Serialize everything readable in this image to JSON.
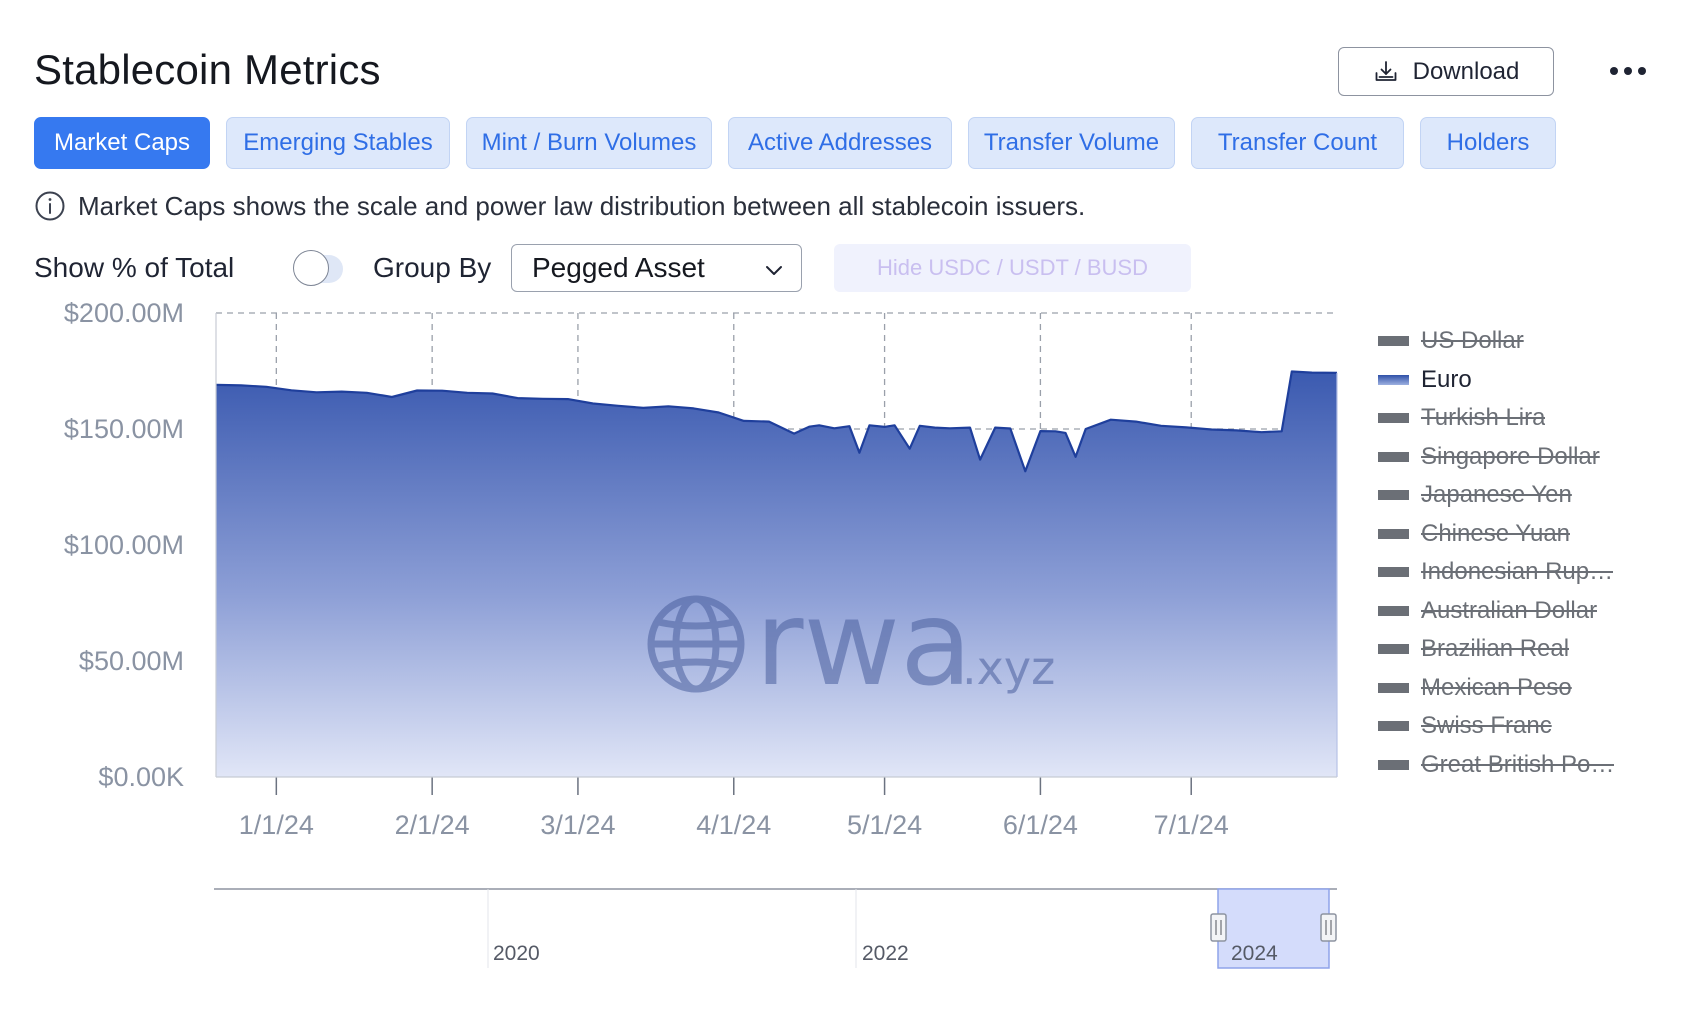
{
  "header": {
    "title": "Stablecoin Metrics",
    "download_label": "Download"
  },
  "icons": {
    "download": "download-icon",
    "more": "more-dots-icon",
    "info": "info-icon",
    "chevron": "chevron-down-icon",
    "watermark": "globe-icon"
  },
  "tabs": [
    {
      "label": "Market Caps",
      "active": true
    },
    {
      "label": "Emerging Stables",
      "active": false
    },
    {
      "label": "Mint / Burn Volumes",
      "active": false
    },
    {
      "label": "Active Addresses",
      "active": false
    },
    {
      "label": "Transfer Volume",
      "active": false
    },
    {
      "label": "Transfer Count",
      "active": false
    },
    {
      "label": "Holders",
      "active": false
    }
  ],
  "info_text": "Market Caps shows the scale and power law distribution between all stablecoin issuers.",
  "controls": {
    "show_pct_label": "Show % of Total",
    "show_pct_on": false,
    "group_by_label": "Group By",
    "group_by_value": "Pegged Asset",
    "hide_button_label": "Hide USDC / USDT / BUSD"
  },
  "colors": {
    "accent": "#3679f0",
    "series_top": "#2f50a8",
    "series_bottom": "#dfe4f6",
    "legend_off": "#6b6f76"
  },
  "watermark": {
    "main": "rwa",
    "suffix": ".xyz"
  },
  "navigator": {
    "labels": [
      "2020",
      "2022",
      "2024"
    ]
  },
  "chart_data": {
    "type": "area",
    "title": "",
    "xlabel": "",
    "ylabel": "",
    "ylim": [
      0,
      200000000
    ],
    "y_ticks": [
      "$0.00K",
      "$50.00M",
      "$100.00M",
      "$150.00M",
      "$200.00M"
    ],
    "y_tick_values": [
      0,
      50000000,
      100000000,
      150000000,
      200000000
    ],
    "x_ticks": [
      "1/1/24",
      "2/1/24",
      "3/1/24",
      "4/1/24",
      "5/1/24",
      "6/1/24",
      "7/1/24"
    ],
    "x_tick_dates": [
      "2024-01-01",
      "2024-02-01",
      "2024-03-01",
      "2024-04-01",
      "2024-05-01",
      "2024-06-01",
      "2024-07-01"
    ],
    "xlim": [
      "2023-12-20",
      "2024-07-30"
    ],
    "grid": true,
    "legend_position": "right",
    "legend": [
      {
        "name": "US Dollar",
        "visible": false
      },
      {
        "name": "Euro",
        "visible": true
      },
      {
        "name": "Turkish Lira",
        "visible": false
      },
      {
        "name": "Singapore Dollar",
        "visible": false
      },
      {
        "name": "Japanese Yen",
        "visible": false
      },
      {
        "name": "Chinese Yuan",
        "visible": false
      },
      {
        "name": "Indonesian Rup…",
        "visible": false
      },
      {
        "name": "Australian Dollar",
        "visible": false
      },
      {
        "name": "Brazilian Real",
        "visible": false
      },
      {
        "name": "Mexican Peso",
        "visible": false
      },
      {
        "name": "Swiss Franc",
        "visible": false
      },
      {
        "name": "Great British Po…",
        "visible": false
      }
    ],
    "series": [
      {
        "name": "Euro",
        "x": [
          "2023-12-20",
          "2023-12-25",
          "2023-12-30",
          "2024-01-04",
          "2024-01-09",
          "2024-01-14",
          "2024-01-19",
          "2024-01-24",
          "2024-01-29",
          "2024-02-03",
          "2024-02-08",
          "2024-02-13",
          "2024-02-18",
          "2024-02-23",
          "2024-02-28",
          "2024-03-04",
          "2024-03-09",
          "2024-03-14",
          "2024-03-19",
          "2024-03-24",
          "2024-03-29",
          "2024-04-03",
          "2024-04-08",
          "2024-04-13",
          "2024-04-16",
          "2024-04-18",
          "2024-04-21",
          "2024-04-24",
          "2024-04-26",
          "2024-04-28",
          "2024-05-01",
          "2024-05-03",
          "2024-05-06",
          "2024-05-08",
          "2024-05-11",
          "2024-05-14",
          "2024-05-18",
          "2024-05-20",
          "2024-05-23",
          "2024-05-26",
          "2024-05-29",
          "2024-06-01",
          "2024-06-04",
          "2024-06-06",
          "2024-06-08",
          "2024-06-10",
          "2024-06-15",
          "2024-06-20",
          "2024-06-25",
          "2024-06-30",
          "2024-07-05",
          "2024-07-10",
          "2024-07-15",
          "2024-07-19",
          "2024-07-21",
          "2024-07-25",
          "2024-07-30"
        ],
        "values": [
          169000000,
          168800000,
          168200000,
          166700000,
          165800000,
          166100000,
          165600000,
          163800000,
          166600000,
          166500000,
          165600000,
          165300000,
          163300000,
          163000000,
          162900000,
          161000000,
          160000000,
          159100000,
          159800000,
          158900000,
          157100000,
          153500000,
          153200000,
          148000000,
          151000000,
          151600000,
          150300000,
          151200000,
          139800000,
          151600000,
          150900000,
          151600000,
          141500000,
          151400000,
          150600000,
          150300000,
          150600000,
          136800000,
          150600000,
          150200000,
          131800000,
          149100000,
          149000000,
          148300000,
          138000000,
          150000000,
          154000000,
          153200000,
          151400000,
          150700000,
          149800000,
          149400000,
          148600000,
          149000000,
          174800000,
          174300000,
          174200000
        ]
      }
    ]
  }
}
